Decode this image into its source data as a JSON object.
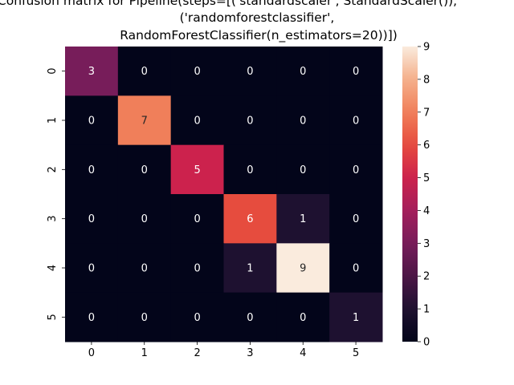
{
  "chart_data": {
    "type": "heatmap",
    "title_lines": [
      "Confusion matrix for Pipeline(steps=[('standardscaler', StandardScaler()),",
      "('randomforestclassifier',",
      "RandomForestClassifier(n_estimators=20))])"
    ],
    "x_ticks": [
      "0",
      "1",
      "2",
      "3",
      "4",
      "5"
    ],
    "y_ticks": [
      "0",
      "1",
      "2",
      "3",
      "4",
      "5"
    ],
    "values": [
      [
        3,
        0,
        0,
        0,
        0,
        0
      ],
      [
        0,
        7,
        0,
        0,
        0,
        0
      ],
      [
        0,
        0,
        5,
        0,
        0,
        0
      ],
      [
        0,
        0,
        0,
        6,
        1,
        0
      ],
      [
        0,
        0,
        0,
        1,
        9,
        0
      ],
      [
        0,
        0,
        0,
        0,
        0,
        1
      ]
    ],
    "vmin": 0,
    "vmax": 9,
    "colormap": "rocket",
    "colorbar_ticks": [
      "0",
      "1",
      "2",
      "3",
      "4",
      "5",
      "6",
      "7",
      "8",
      "9"
    ],
    "annotations": true,
    "grid": false
  }
}
